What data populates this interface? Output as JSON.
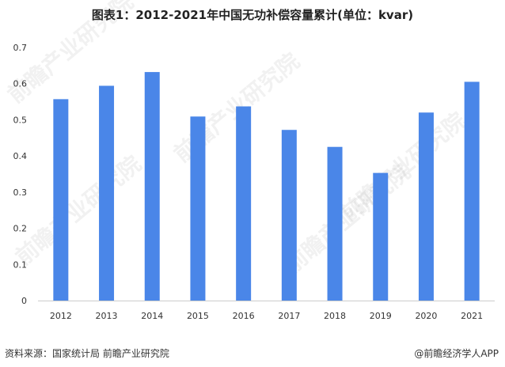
{
  "title": "图表1：2012-2021年中国无功补偿容量累计(单位：kvar)",
  "source": "资料来源：国家统计局 前瞻产业研究院",
  "brand": "@前瞻经济学人APP",
  "watermark": "前瞻产业研究院",
  "colors": {
    "bar": "#4A86E8",
    "axis": "#cccccc",
    "tick_text": "#333333"
  },
  "chart_data": {
    "type": "bar",
    "categories": [
      "2012",
      "2013",
      "2014",
      "2015",
      "2016",
      "2017",
      "2018",
      "2019",
      "2020",
      "2021"
    ],
    "values": [
      0.557,
      0.594,
      0.632,
      0.509,
      0.537,
      0.472,
      0.425,
      0.353,
      0.52,
      0.605
    ],
    "title": "图表1：2012-2021年中国无功补偿容量累计(单位：kvar)",
    "xlabel": "",
    "ylabel": "",
    "ylim": [
      0,
      0.7
    ],
    "yticks": [
      "0",
      "0.1",
      "0.2",
      "0.3",
      "0.4",
      "0.5",
      "0.6",
      "0.7"
    ],
    "grid": false,
    "legend": "none"
  }
}
